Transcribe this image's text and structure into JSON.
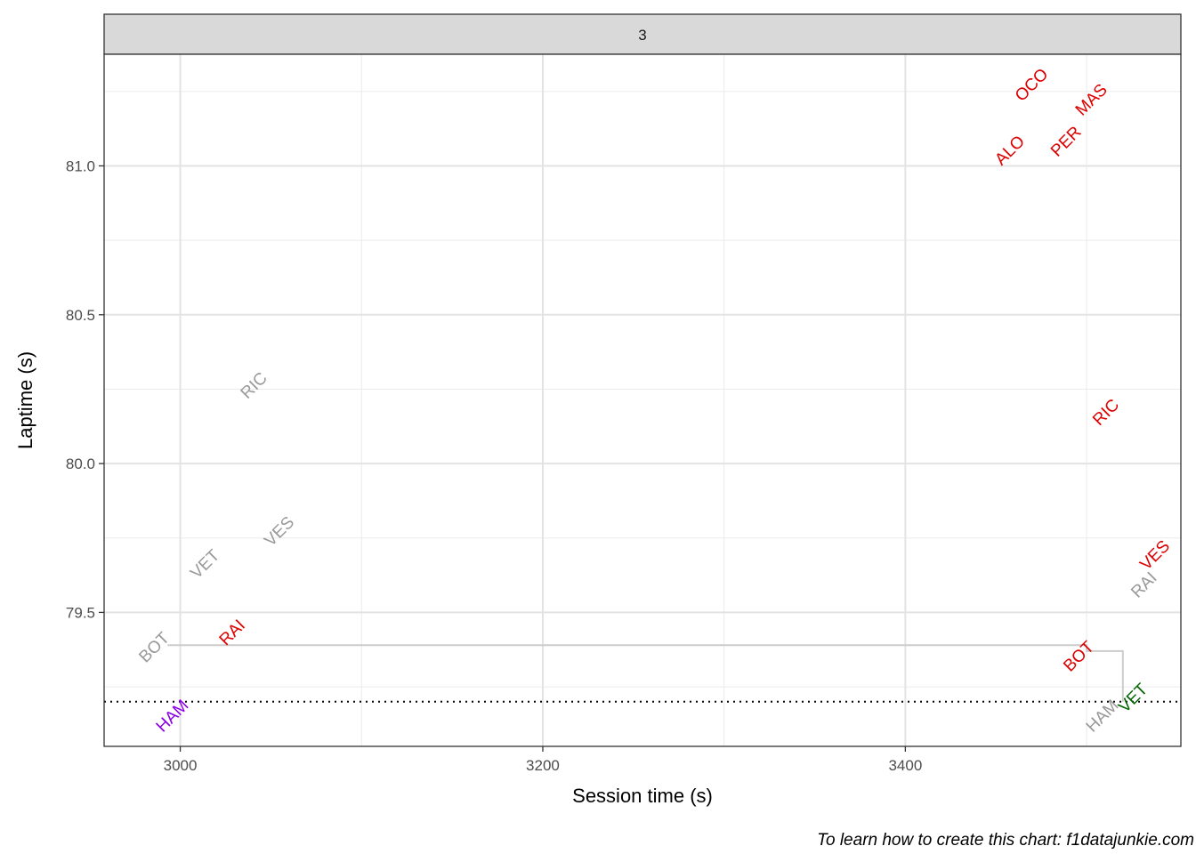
{
  "chart_data": {
    "type": "scatter",
    "facet_label": "3",
    "xlabel": "Session time (s)",
    "ylabel": "Laptime (s)",
    "caption": "To learn how to create this chart: f1datajunkie.com",
    "xlim": [
      2958,
      3552
    ],
    "ylim": [
      79.05,
      81.375
    ],
    "x_ticks": [
      3000,
      3200,
      3400
    ],
    "x_tick_labels": [
      "3000",
      "3200",
      "3400"
    ],
    "y_ticks": [
      79.5,
      80.0,
      80.5,
      81.0
    ],
    "y_tick_labels": [
      "79.5",
      "80.0",
      "80.5",
      "81.0"
    ],
    "grid": true,
    "reference_line": {
      "y": 79.2,
      "style": "dotted"
    },
    "step_line": {
      "color": "#cccccc",
      "points": [
        [
          2993,
          79.39
        ],
        [
          3500,
          79.39
        ],
        [
          3500,
          79.37
        ],
        [
          3520,
          79.37
        ],
        [
          3520,
          79.2
        ]
      ]
    },
    "colors": {
      "grey": "#999999",
      "red": "#dd0000",
      "purple": "#8a00e6",
      "green": "#006600"
    },
    "points": [
      {
        "label": "OCO",
        "x": 3470,
        "y": 81.27,
        "color": "red"
      },
      {
        "label": "MAS",
        "x": 3503,
        "y": 81.22,
        "color": "red"
      },
      {
        "label": "ALO",
        "x": 3458,
        "y": 81.05,
        "color": "red"
      },
      {
        "label": "PER",
        "x": 3489,
        "y": 81.08,
        "color": "red"
      },
      {
        "label": "RIC",
        "x": 3041,
        "y": 80.26,
        "color": "grey"
      },
      {
        "label": "RIC",
        "x": 3511,
        "y": 80.17,
        "color": "red"
      },
      {
        "label": "VES",
        "x": 3055,
        "y": 79.77,
        "color": "grey"
      },
      {
        "label": "VES",
        "x": 3538,
        "y": 79.69,
        "color": "red"
      },
      {
        "label": "VET",
        "x": 3014,
        "y": 79.66,
        "color": "grey"
      },
      {
        "label": "RAI",
        "x": 3532,
        "y": 79.59,
        "color": "grey"
      },
      {
        "label": "RAI",
        "x": 3029,
        "y": 79.43,
        "color": "red"
      },
      {
        "label": "BOT",
        "x": 2986,
        "y": 79.38,
        "color": "grey"
      },
      {
        "label": "BOT",
        "x": 3496,
        "y": 79.35,
        "color": "red"
      },
      {
        "label": "HAM",
        "x": 2996,
        "y": 79.15,
        "color": "purple"
      },
      {
        "label": "HAM",
        "x": 3509,
        "y": 79.15,
        "color": "grey"
      },
      {
        "label": "VET",
        "x": 3526,
        "y": 79.21,
        "color": "green"
      }
    ]
  }
}
